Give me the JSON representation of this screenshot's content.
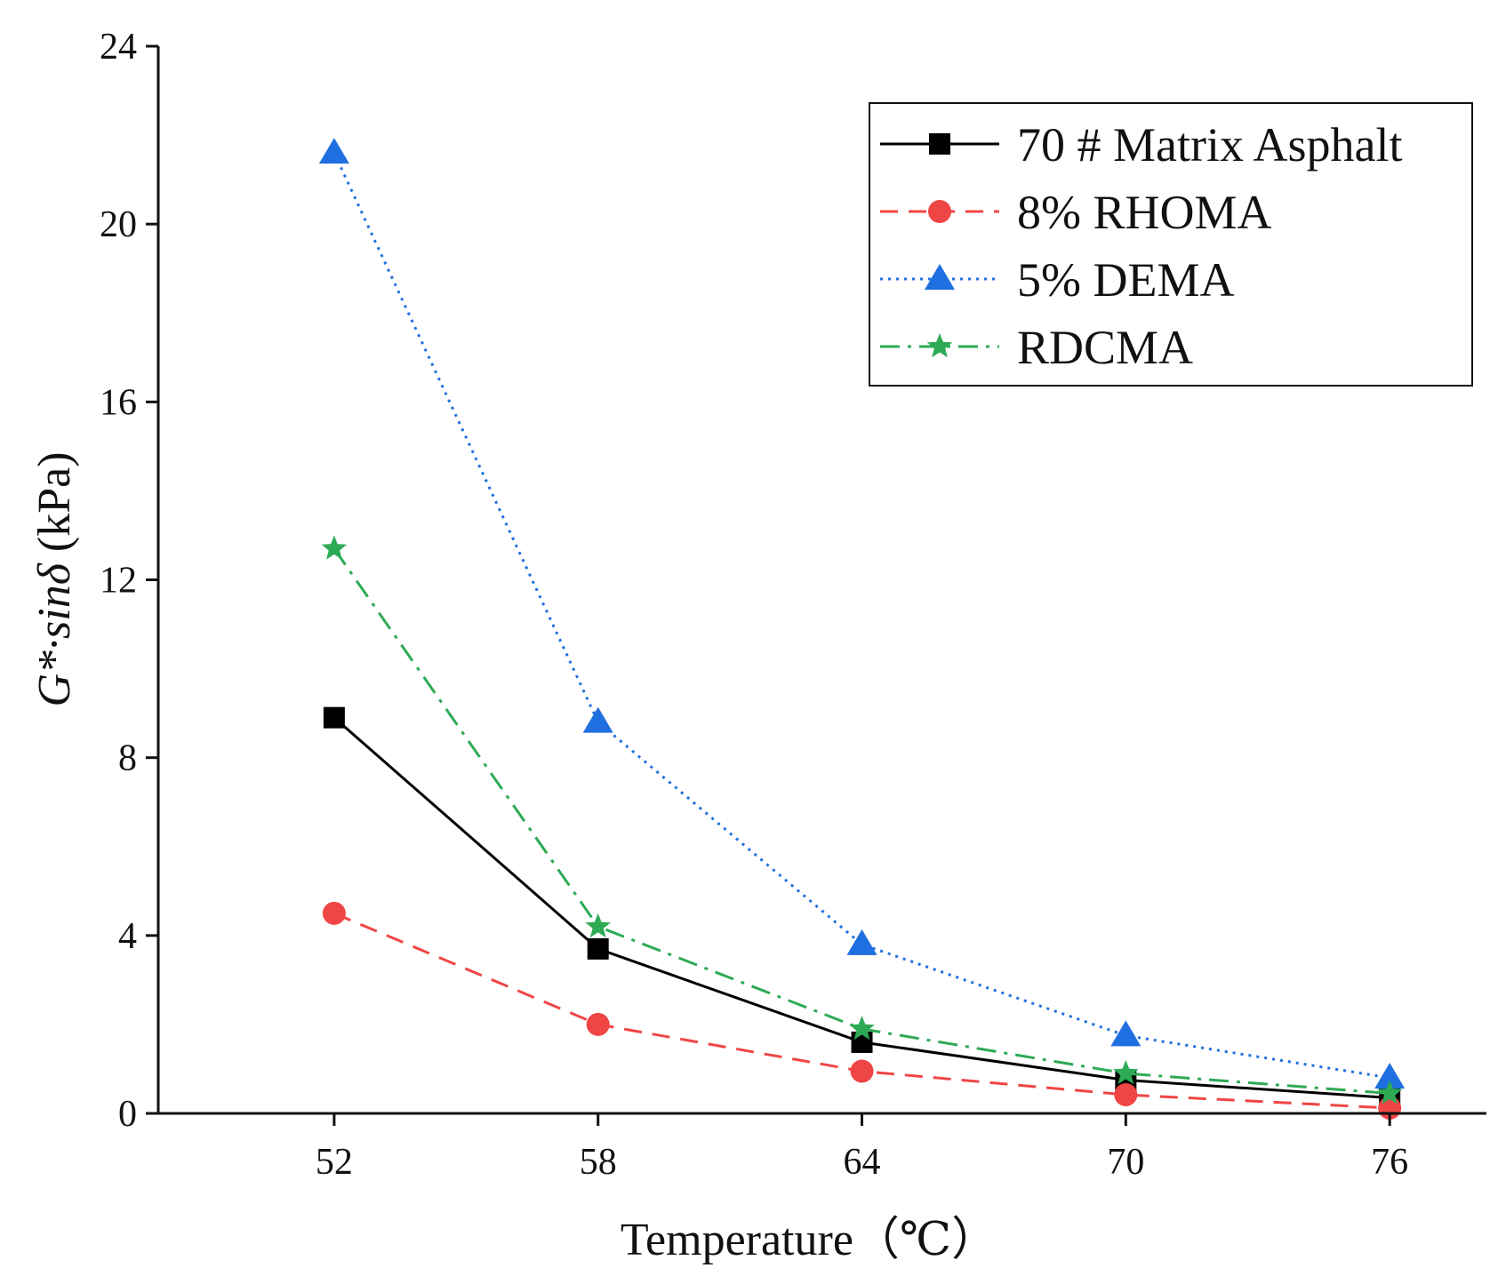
{
  "chart_data": {
    "type": "line",
    "title": "",
    "xlabel": "Temperature（℃）",
    "ylabel_main": "G*·sinδ",
    "ylabel_unit": " (kPa)",
    "x": [
      52,
      58,
      64,
      70,
      76
    ],
    "x_tick_labels": [
      "52",
      "58",
      "64",
      "70",
      "76"
    ],
    "xlim": [
      48,
      78.2
    ],
    "ylim": [
      0,
      24
    ],
    "y_ticks": [
      0,
      4,
      8,
      12,
      16,
      20,
      24
    ],
    "y_tick_labels": [
      "0",
      "4",
      "8",
      "12",
      "16",
      "20",
      "24"
    ],
    "grid": false,
    "legend_position": "top-right",
    "series": [
      {
        "name": "70 # Matrix Asphalt",
        "values": [
          8.9,
          3.7,
          1.6,
          0.75,
          0.35
        ],
        "color": "#000000",
        "line_style": "solid",
        "marker": "square"
      },
      {
        "name": "8% RHOMA",
        "values": [
          4.5,
          2.0,
          0.95,
          0.42,
          0.12
        ],
        "color": "#f04545",
        "line_style": "dashed",
        "marker": "circle"
      },
      {
        "name": "5% DEMA",
        "values": [
          21.6,
          8.8,
          3.8,
          1.75,
          0.8
        ],
        "color": "#1f6fe0",
        "line_style": "dotted",
        "marker": "triangle"
      },
      {
        "name": "RDCMA",
        "values": [
          12.7,
          4.2,
          1.9,
          0.9,
          0.45
        ],
        "color": "#2eaa55",
        "line_style": "dash-dot",
        "marker": "star"
      }
    ]
  }
}
